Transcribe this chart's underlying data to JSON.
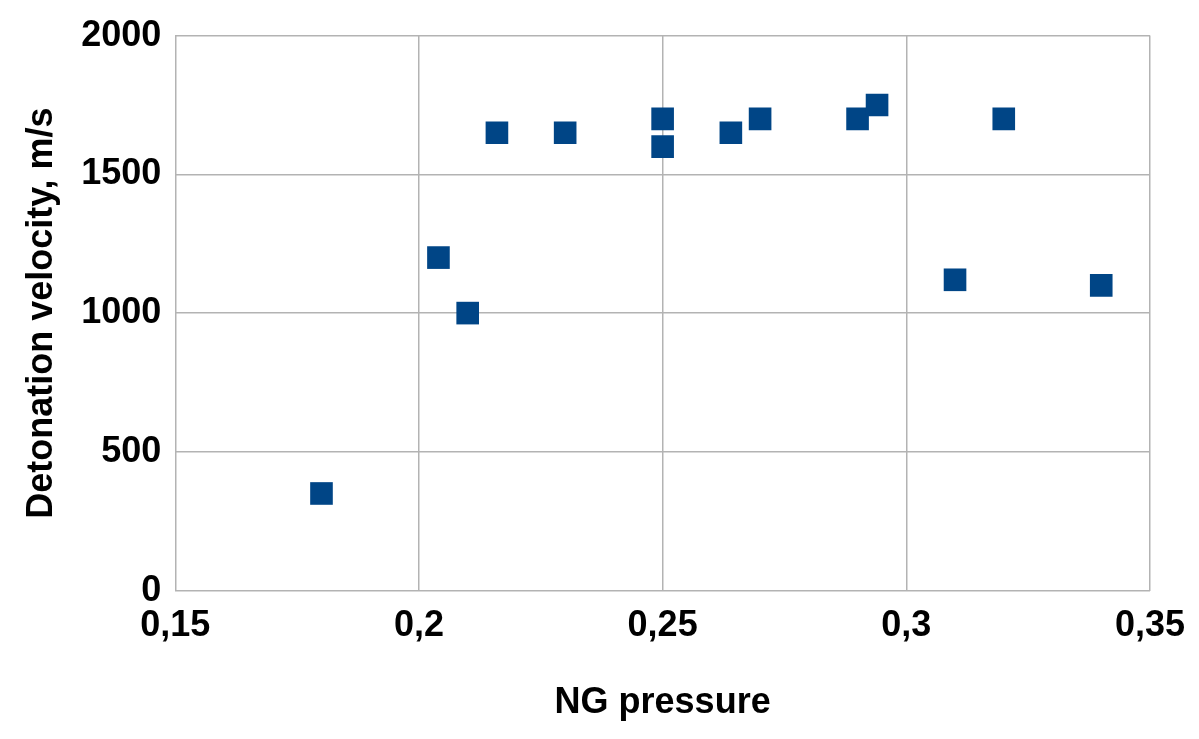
{
  "chart_data": {
    "type": "scatter",
    "xlabel": "NG pressure",
    "ylabel": "Detonation velocity, m/s",
    "x": [
      0.18,
      0.204,
      0.21,
      0.216,
      0.23,
      0.25,
      0.25,
      0.264,
      0.27,
      0.29,
      0.294,
      0.31,
      0.32,
      0.34
    ],
    "values": [
      350,
      1200,
      1000,
      1650,
      1650,
      1700,
      1600,
      1650,
      1700,
      1700,
      1750,
      1120,
      1700,
      1100
    ],
    "color": "#004586",
    "marker": "square",
    "xlim": [
      0.15,
      0.35
    ],
    "xticks": [
      {
        "value": 0.15,
        "label": "0,15"
      },
      {
        "value": 0.2,
        "label": "0,2"
      },
      {
        "value": 0.25,
        "label": "0,25"
      },
      {
        "value": 0.3,
        "label": "0,3"
      },
      {
        "value": 0.35,
        "label": "0,35"
      }
    ],
    "ylim": [
      0,
      2000
    ],
    "yticks": [
      0,
      500,
      1000,
      1500,
      2000
    ],
    "grid": true,
    "legend": false
  }
}
